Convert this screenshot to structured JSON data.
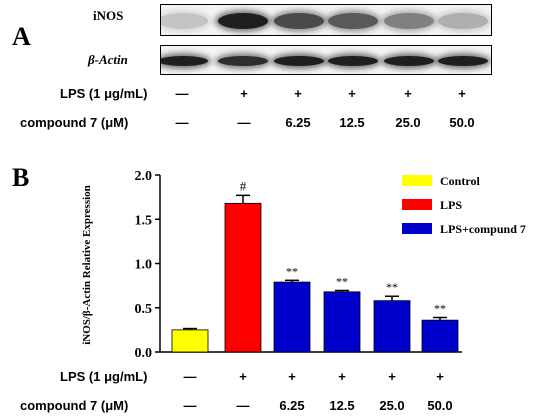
{
  "panel_a": {
    "letter": "A",
    "blots": [
      {
        "label": "iNOS",
        "intensities": [
          0.18,
          0.95,
          0.75,
          0.68,
          0.5,
          0.28
        ]
      },
      {
        "label": "β-Actin",
        "intensities": [
          0.95,
          0.88,
          0.95,
          0.95,
          0.95,
          0.95
        ]
      }
    ]
  },
  "panel_b_letter": "B",
  "treatment_rows": [
    {
      "label": "LPS (1 μg/mL)",
      "cells": [
        "—",
        "+",
        "+",
        "+",
        "+",
        "+"
      ]
    },
    {
      "label": "compound 7 (μM)",
      "cells": [
        "—",
        "—",
        "6.25",
        "12.5",
        "25.0",
        "50.0"
      ]
    }
  ],
  "chart_data": {
    "type": "bar",
    "ylabel": "iNOS/β-Actin Relative Expression",
    "ylim": [
      0,
      2.0
    ],
    "yticks": [
      "0.0",
      "0.5",
      "1.0",
      "1.5",
      "2.0"
    ],
    "categories": [
      "Control",
      "LPS",
      "6.25",
      "12.5",
      "25.0",
      "50.0"
    ],
    "values": [
      0.25,
      1.68,
      0.79,
      0.68,
      0.58,
      0.36
    ],
    "errors": [
      0.015,
      0.09,
      0.02,
      0.015,
      0.05,
      0.03
    ],
    "annotations": [
      "",
      "#",
      "**",
      "**",
      "**",
      "**"
    ],
    "bar_colors": [
      "#ffff00",
      "#ff0000",
      "#0000cc",
      "#0000cc",
      "#0000cc",
      "#0000cc"
    ],
    "legend": [
      {
        "label": "Control",
        "color": "#ffff00"
      },
      {
        "label": "LPS",
        "color": "#ff0000"
      },
      {
        "label": "LPS+compund 7",
        "color": "#0000cc"
      }
    ]
  }
}
